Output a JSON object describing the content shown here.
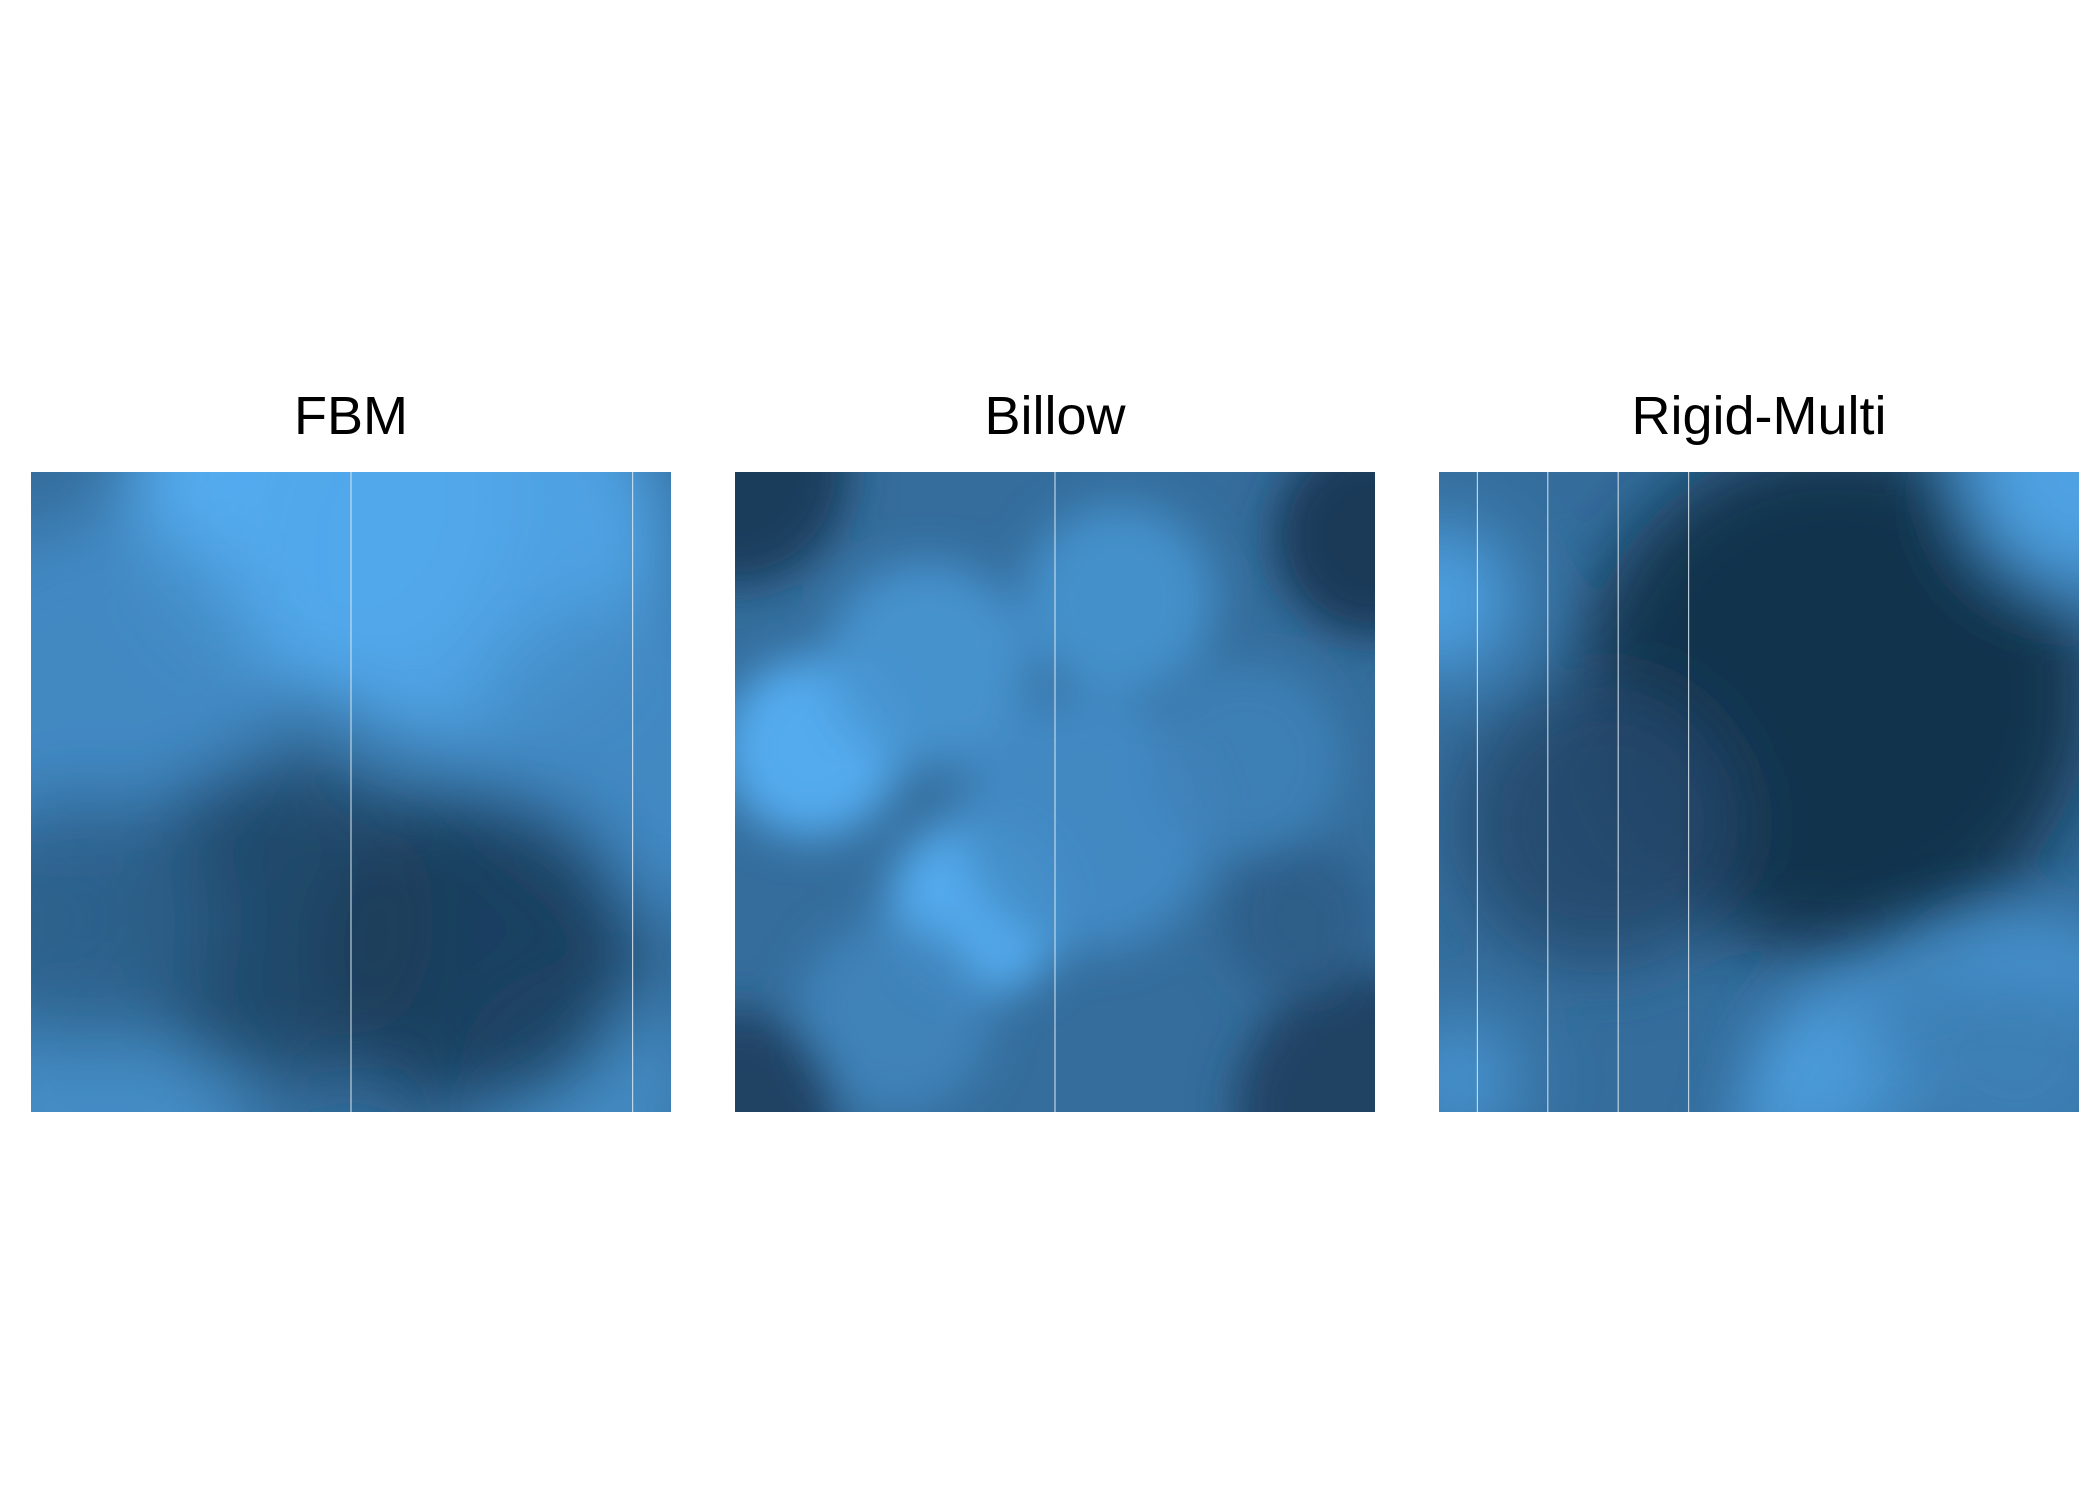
{
  "chart_data": [
    {
      "type": "heatmap",
      "title": "FBM",
      "colormap": {
        "low": "#132B43",
        "high": "#56B1F7"
      },
      "axes": "none",
      "legend": "none",
      "blobs": [
        {
          "x": 0.45,
          "y": 0.04,
          "r": 0.3,
          "v": 1.0
        },
        {
          "x": 0.68,
          "y": 0.12,
          "r": 0.32,
          "v": 0.85
        },
        {
          "x": 0.1,
          "y": 0.35,
          "r": 0.28,
          "v": 0.45
        },
        {
          "x": 0.12,
          "y": 0.98,
          "r": 0.22,
          "v": 0.5
        },
        {
          "x": 0.85,
          "y": 0.95,
          "r": 0.18,
          "v": 0.5
        },
        {
          "x": 0.93,
          "y": 0.45,
          "r": 0.25,
          "v": 0.45
        },
        {
          "x": 0.38,
          "y": 0.7,
          "r": 0.25,
          "v": -0.6
        },
        {
          "x": 0.7,
          "y": 0.75,
          "r": 0.25,
          "v": -0.75
        },
        {
          "x": 0.08,
          "y": 0.7,
          "r": 0.2,
          "v": -0.2
        }
      ],
      "stripes": [
        0.5,
        0.94
      ]
    },
    {
      "type": "heatmap",
      "title": "Billow",
      "colormap": {
        "low": "#132B43",
        "high": "#56B1F7"
      },
      "axes": "none",
      "legend": "none",
      "blobs": [
        {
          "x": 0.12,
          "y": 0.43,
          "r": 0.14,
          "v": 1.0
        },
        {
          "x": 0.38,
          "y": 0.68,
          "r": 0.14,
          "v": 1.0
        },
        {
          "x": 0.3,
          "y": 0.3,
          "r": 0.16,
          "v": 0.6
        },
        {
          "x": 0.6,
          "y": 0.2,
          "r": 0.15,
          "v": 0.55
        },
        {
          "x": 0.55,
          "y": 0.55,
          "r": 0.2,
          "v": 0.45
        },
        {
          "x": 0.25,
          "y": 0.85,
          "r": 0.15,
          "v": 0.35
        },
        {
          "x": 0.8,
          "y": 0.45,
          "r": 0.15,
          "v": 0.3
        },
        {
          "x": 0.0,
          "y": 0.0,
          "r": 0.18,
          "v": -0.8
        },
        {
          "x": 1.0,
          "y": 0.1,
          "r": 0.16,
          "v": -0.85
        },
        {
          "x": 0.0,
          "y": 1.0,
          "r": 0.16,
          "v": -0.7
        },
        {
          "x": 1.0,
          "y": 1.0,
          "r": 0.22,
          "v": -0.7
        },
        {
          "x": 0.88,
          "y": 0.7,
          "r": 0.12,
          "v": -0.25
        }
      ],
      "stripes": [
        0.5
      ]
    },
    {
      "type": "heatmap",
      "title": "Rigid-Multi",
      "colormap": {
        "low": "#132B43",
        "high": "#56B1F7"
      },
      "axes": "none",
      "legend": "none",
      "blobs": [
        {
          "x": 0.62,
          "y": 0.35,
          "r": 0.4,
          "v": -1.0
        },
        {
          "x": 0.25,
          "y": 0.55,
          "r": 0.22,
          "v": -0.55
        },
        {
          "x": 1.0,
          "y": 0.0,
          "r": 0.18,
          "v": 0.85
        },
        {
          "x": 0.0,
          "y": 0.2,
          "r": 0.12,
          "v": 0.8
        },
        {
          "x": 0.03,
          "y": 0.95,
          "r": 0.1,
          "v": 0.6
        },
        {
          "x": 0.62,
          "y": 0.96,
          "r": 0.12,
          "v": 0.65
        },
        {
          "x": 0.9,
          "y": 0.9,
          "r": 0.18,
          "v": 0.3
        }
      ],
      "ridge": {
        "cx": 0.88,
        "cy": 1.12,
        "r": 0.38,
        "width": 0.045,
        "v": 1.0
      },
      "stripes": [
        0.06,
        0.17,
        0.28,
        0.39
      ]
    }
  ]
}
